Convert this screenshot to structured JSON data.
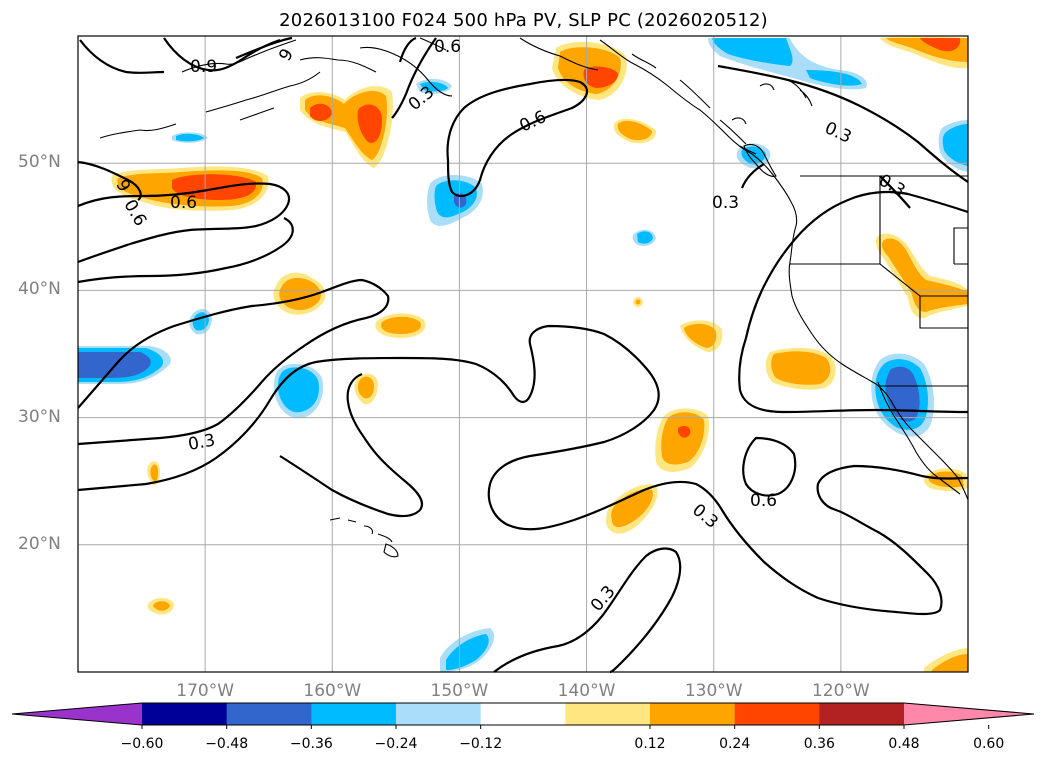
{
  "title": "2026013100 F024 500 hPa PV, SLP PC (2026020512)",
  "map": {
    "lat_range": [
      10,
      60
    ],
    "lon_range": [
      -180,
      -110
    ],
    "lat_ticks": [
      {
        "value": 20,
        "label": "20°N"
      },
      {
        "value": 30,
        "label": "30°N"
      },
      {
        "value": 40,
        "label": "40°N"
      },
      {
        "value": 50,
        "label": "50°N"
      }
    ],
    "lon_ticks": [
      {
        "value": -170,
        "label": "170°W"
      },
      {
        "value": -160,
        "label": "160°W"
      },
      {
        "value": -150,
        "label": "150°W"
      },
      {
        "value": -140,
        "label": "140°W"
      },
      {
        "value": -130,
        "label": "130°W"
      },
      {
        "value": -120,
        "label": "120°W"
      }
    ],
    "contour_labels": [
      "0.9",
      "9",
      "0.6",
      "0.3",
      "0.6",
      "0.3",
      "0.3",
      "0.3",
      "0.6",
      "9",
      "0.6",
      "0.3",
      "0.3",
      "0.6",
      "0.3"
    ]
  },
  "colorbar": {
    "ticks": [
      "−0.60",
      "−0.48",
      "−0.36",
      "−0.24",
      "−0.12",
      "0.12",
      "0.24",
      "0.36",
      "0.48",
      "0.60"
    ],
    "colors": [
      "#9933cc",
      "#000099",
      "#3366cc",
      "#00bbff",
      "#aaddf7",
      "#ffffff",
      "#ffe680",
      "#ffa500",
      "#ff4500",
      "#b22222",
      "#ff88aa"
    ]
  },
  "colors": {
    "grid": "#a9a9a9",
    "coast": "#000000",
    "contour": "#000000"
  }
}
